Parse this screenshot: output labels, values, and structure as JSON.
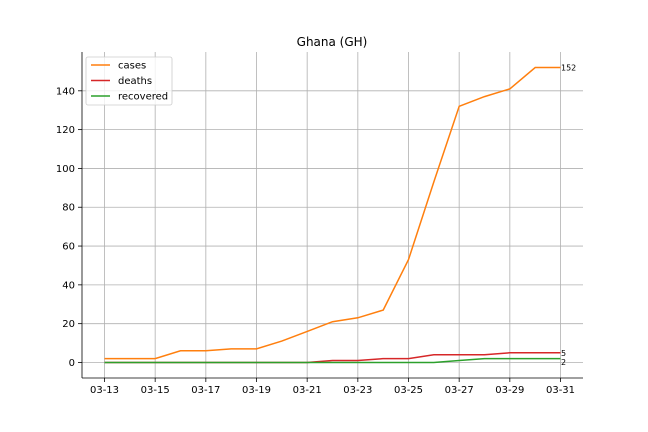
{
  "chart_data": {
    "type": "line",
    "title": "Ghana (GH)",
    "xlabel": "",
    "ylabel": "",
    "x": [
      "03-13",
      "03-14",
      "03-15",
      "03-16",
      "03-17",
      "03-18",
      "03-19",
      "03-20",
      "03-21",
      "03-22",
      "03-23",
      "03-24",
      "03-25",
      "03-26",
      "03-27",
      "03-28",
      "03-29",
      "03-30",
      "03-31"
    ],
    "xticks": [
      "03-13",
      "03-15",
      "03-17",
      "03-19",
      "03-21",
      "03-23",
      "03-25",
      "03-27",
      "03-29",
      "03-31"
    ],
    "yticks": [
      0,
      20,
      40,
      60,
      80,
      100,
      120,
      140
    ],
    "ylim": [
      -8,
      160
    ],
    "grid": true,
    "legend": "top-left",
    "series": [
      {
        "name": "cases",
        "color": "#ff7f0e",
        "end_label": "152",
        "values": [
          2,
          2,
          2,
          6,
          6,
          7,
          7,
          11,
          16,
          21,
          23,
          27,
          53,
          93,
          132,
          137,
          141,
          152,
          152
        ]
      },
      {
        "name": "deaths",
        "color": "#d62728",
        "end_label": "5",
        "values": [
          0,
          0,
          0,
          0,
          0,
          0,
          0,
          0,
          0,
          1,
          1,
          2,
          2,
          4,
          4,
          4,
          5,
          5,
          5
        ]
      },
      {
        "name": "recovered",
        "color": "#2ca02c",
        "end_label": "2",
        "values": [
          0,
          0,
          0,
          0,
          0,
          0,
          0,
          0,
          0,
          0,
          0,
          0,
          0,
          0,
          1,
          2,
          2,
          2,
          2
        ]
      }
    ]
  }
}
